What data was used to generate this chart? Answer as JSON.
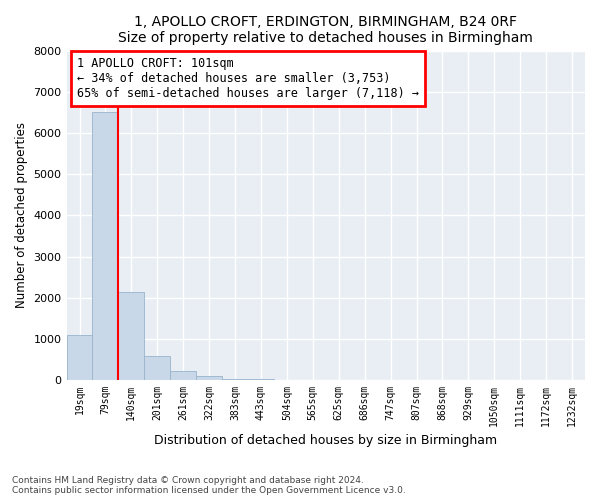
{
  "title": "1, APOLLO CROFT, ERDINGTON, BIRMINGHAM, B24 0RF",
  "subtitle": "Size of property relative to detached houses in Birmingham",
  "xlabel": "Distribution of detached houses by size in Birmingham",
  "ylabel": "Number of detached properties",
  "footer_line1": "Contains HM Land Registry data © Crown copyright and database right 2024.",
  "footer_line2": "Contains public sector information licensed under the Open Government Licence v3.0.",
  "bar_color": "#c8d8e8",
  "bar_edge_color": "#9ab4cc",
  "annotation_title": "1 APOLLO CROFT: 101sqm",
  "annotation_line1": "← 34% of detached houses are smaller (3,753)",
  "annotation_line2": "65% of semi-detached houses are larger (7,118) →",
  "categories": [
    "19sqm",
    "79sqm",
    "140sqm",
    "201sqm",
    "261sqm",
    "322sqm",
    "383sqm",
    "443sqm",
    "504sqm",
    "565sqm",
    "625sqm",
    "686sqm",
    "747sqm",
    "807sqm",
    "868sqm",
    "929sqm",
    "1050sqm",
    "1111sqm",
    "1172sqm",
    "1232sqm"
  ],
  "values": [
    1100,
    6500,
    2150,
    580,
    220,
    90,
    40,
    20,
    12,
    7,
    5,
    4,
    3,
    3,
    2,
    2,
    1,
    1,
    0,
    0
  ],
  "ylim": [
    0,
    8000
  ],
  "yticks": [
    0,
    1000,
    2000,
    3000,
    4000,
    5000,
    6000,
    7000,
    8000
  ],
  "red_line_x": 1.5,
  "bg_color": "#e8eef4"
}
